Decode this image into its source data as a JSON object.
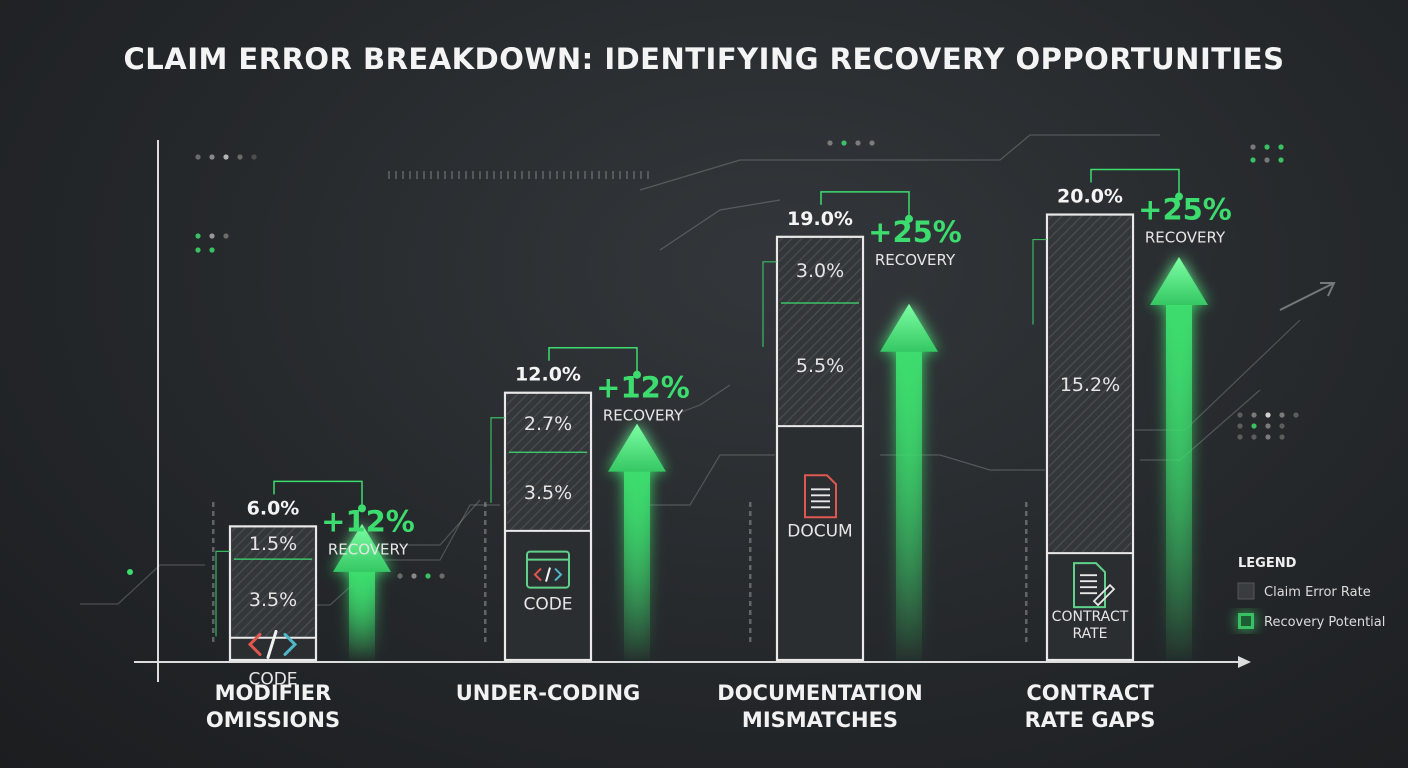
{
  "title": "CLAIM ERROR BREAKDOWN: IDENTIFYING RECOVERY OPPORTUNITIES",
  "legend": {
    "title": "LEGEND",
    "items": [
      {
        "label": "Claim Error Rate",
        "color": "#3a3d40"
      },
      {
        "label": "Recovery Potential",
        "color": "#3ddc6e"
      }
    ]
  },
  "colors": {
    "accent": "#3ddc6e",
    "bar": "#2b2e31",
    "bar_outline": "#e9e9e9",
    "text": "#f2f2f2"
  },
  "chart_data": {
    "type": "bar",
    "categories": [
      [
        "MODIFIER",
        "OMISSIONS"
      ],
      [
        "UNDER-CODING"
      ],
      [
        "DOCUMENTATION",
        "MISMATCHES"
      ],
      [
        "CONTRACT",
        "RATE GAPS"
      ]
    ],
    "totals": [
      6.0,
      12.0,
      19.0,
      20.0
    ],
    "total_labels": [
      "6.0%",
      "12.0%",
      "19.0%",
      "20.0%"
    ],
    "segments": [
      [
        {
          "value": 1.5,
          "label": "1.5%"
        },
        {
          "value": 3.5,
          "label": "3.5%"
        }
      ],
      [
        {
          "value": 2.7,
          "label": "2.7%"
        },
        {
          "value": 3.5,
          "label": "3.5%"
        }
      ],
      [
        {
          "value": 3.0,
          "label": "3.0%"
        },
        {
          "value": 5.5,
          "label": "5.5%"
        }
      ],
      [
        {
          "value": 15.2,
          "label": "15.2%"
        }
      ]
    ],
    "icons": [
      "code-icon",
      "code-window-icon",
      "document-icon",
      "contract-icon"
    ],
    "icon_labels": [
      [
        "CODE"
      ],
      [
        "CODE"
      ],
      [
        "DOCUM"
      ],
      [
        "CONTRACT",
        "RATE"
      ]
    ],
    "recovery": [
      {
        "value": 12,
        "label": "+12%",
        "caption": "RECOVERY"
      },
      {
        "value": 12,
        "label": "+12%",
        "caption": "RECOVERY"
      },
      {
        "value": 25,
        "label": "+25%",
        "caption": "RECOVERY"
      },
      {
        "value": 25,
        "label": "+25%",
        "caption": "RECOVERY"
      }
    ],
    "ylim": [
      0,
      22
    ],
    "grid": false,
    "legend_position": "bottom-right"
  }
}
